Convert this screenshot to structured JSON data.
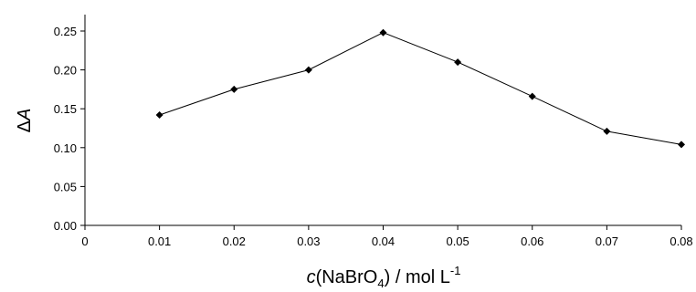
{
  "chart_data": {
    "type": "line",
    "x": [
      0.01,
      0.02,
      0.03,
      0.04,
      0.05,
      0.06,
      0.07,
      0.08
    ],
    "series": [
      {
        "values": [
          0.142,
          0.175,
          0.2,
          0.248,
          0.21,
          0.166,
          0.121,
          0.104
        ]
      }
    ],
    "xlim": [
      0,
      0.08
    ],
    "ylim": [
      0,
      0.25
    ],
    "x_ticks": [
      "0",
      "0.01",
      "0.02",
      "0.03",
      "0.04",
      "0.05",
      "0.06",
      "0.07",
      "0.08"
    ],
    "y_ticks": [
      "0.00",
      "0.05",
      "0.10",
      "0.15",
      "0.20",
      "0.25"
    ],
    "xlabel": {
      "italic": "c",
      "pre": "(NaBrO",
      "sub": "4",
      "post": ") / mol L",
      "sup": "-1"
    },
    "ylabel": {
      "prefix": "Δ",
      "italic": "A"
    },
    "grid": false,
    "line_color": "#000000",
    "marker": "diamond"
  }
}
